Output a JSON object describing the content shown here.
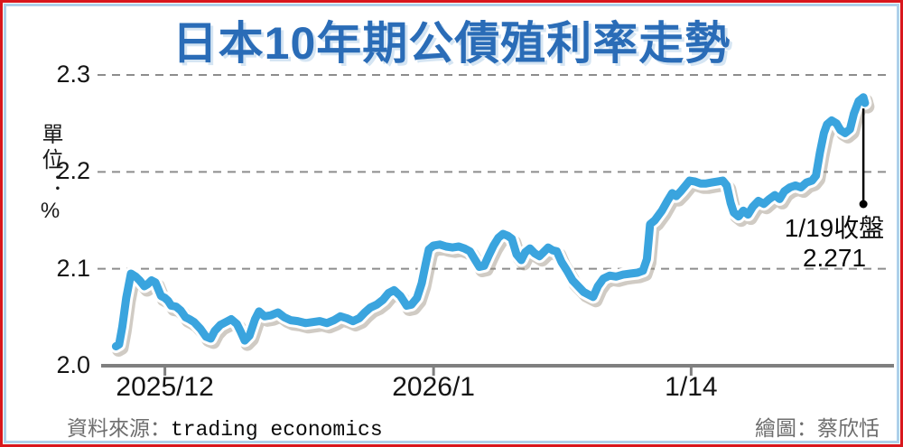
{
  "chart_data": {
    "type": "line",
    "title": "日本10年期公債殖利率走勢",
    "unit_label": "單位：%",
    "series_name": "日本10年期公債殖利率",
    "y_axis": {
      "ticks": [
        2.0,
        2.1,
        2.2,
        2.3
      ],
      "min": 2.0,
      "max": 2.3,
      "grid": "dashed"
    },
    "x_axis": {
      "ticks": [
        {
          "label": "2025/12",
          "pos_pct": 8.3
        },
        {
          "label": "2026/1",
          "pos_pct": 42.3
        },
        {
          "label": "1/14",
          "pos_pct": 74.9
        }
      ]
    },
    "annotation": {
      "label_line1": "1/19收盤",
      "label_line2": "2.271",
      "value": 2.271,
      "pos_pct": 96.7
    },
    "colors": {
      "line": "#3aa4de",
      "line_casing": "#ffffff",
      "line_shadow": "rgba(150,140,125,0.45)",
      "grid": "#8d8d8d",
      "axis": "#7f7f7f",
      "title": "#2a6cb7",
      "border_outer": "#d8171d",
      "border_inner": "#aed0ea"
    },
    "points": [
      [
        2.1,
        2.02
      ],
      [
        2.5,
        2.022
      ],
      [
        2.9,
        2.04
      ],
      [
        3.4,
        2.07
      ],
      [
        4.0,
        2.095
      ],
      [
        4.6,
        2.092
      ],
      [
        5.1,
        2.088
      ],
      [
        5.7,
        2.082
      ],
      [
        6.1,
        2.084
      ],
      [
        6.6,
        2.088
      ],
      [
        7.1,
        2.086
      ],
      [
        7.8,
        2.072
      ],
      [
        8.3,
        2.07
      ],
      [
        8.7,
        2.067
      ],
      [
        9.1,
        2.062
      ],
      [
        9.7,
        2.061
      ],
      [
        10.3,
        2.057
      ],
      [
        10.9,
        2.05
      ],
      [
        11.4,
        2.048
      ],
      [
        12.0,
        2.045
      ],
      [
        12.8,
        2.038
      ],
      [
        13.5,
        2.03
      ],
      [
        14.1,
        2.028
      ],
      [
        14.6,
        2.036
      ],
      [
        15.3,
        2.042
      ],
      [
        16.0,
        2.045
      ],
      [
        16.7,
        2.048
      ],
      [
        17.4,
        2.043
      ],
      [
        17.9,
        2.035
      ],
      [
        18.4,
        2.026
      ],
      [
        19.0,
        2.031
      ],
      [
        19.7,
        2.048
      ],
      [
        20.2,
        2.056
      ],
      [
        20.9,
        2.051
      ],
      [
        21.7,
        2.052
      ],
      [
        22.6,
        2.055
      ],
      [
        23.4,
        2.05
      ],
      [
        24.2,
        2.047
      ],
      [
        25.1,
        2.046
      ],
      [
        26.1,
        2.044
      ],
      [
        27.0,
        2.045
      ],
      [
        27.9,
        2.046
      ],
      [
        28.8,
        2.044
      ],
      [
        29.7,
        2.047
      ],
      [
        30.5,
        2.051
      ],
      [
        31.3,
        2.049
      ],
      [
        32.1,
        2.046
      ],
      [
        32.9,
        2.049
      ],
      [
        33.6,
        2.055
      ],
      [
        34.3,
        2.06
      ],
      [
        35.1,
        2.063
      ],
      [
        35.9,
        2.068
      ],
      [
        36.6,
        2.075
      ],
      [
        37.3,
        2.078
      ],
      [
        38.1,
        2.072
      ],
      [
        38.9,
        2.062
      ],
      [
        39.5,
        2.063
      ],
      [
        40.2,
        2.07
      ],
      [
        40.8,
        2.085
      ],
      [
        41.3,
        2.105
      ],
      [
        41.7,
        2.12
      ],
      [
        42.3,
        2.124
      ],
      [
        43.1,
        2.125
      ],
      [
        43.9,
        2.123
      ],
      [
        44.7,
        2.122
      ],
      [
        45.5,
        2.123
      ],
      [
        46.2,
        2.121
      ],
      [
        46.9,
        2.118
      ],
      [
        47.5,
        2.11
      ],
      [
        48.1,
        2.102
      ],
      [
        48.7,
        2.103
      ],
      [
        49.3,
        2.114
      ],
      [
        49.9,
        2.124
      ],
      [
        50.5,
        2.132
      ],
      [
        51.1,
        2.136
      ],
      [
        51.7,
        2.134
      ],
      [
        52.2,
        2.131
      ],
      [
        52.8,
        2.115
      ],
      [
        53.4,
        2.109
      ],
      [
        53.9,
        2.117
      ],
      [
        54.5,
        2.121
      ],
      [
        55.1,
        2.116
      ],
      [
        55.7,
        2.113
      ],
      [
        56.2,
        2.117
      ],
      [
        56.8,
        2.122
      ],
      [
        57.4,
        2.119
      ],
      [
        57.9,
        2.118
      ],
      [
        58.5,
        2.107
      ],
      [
        59.2,
        2.098
      ],
      [
        59.9,
        2.088
      ],
      [
        60.6,
        2.082
      ],
      [
        61.3,
        2.076
      ],
      [
        62.0,
        2.073
      ],
      [
        62.5,
        2.071
      ],
      [
        63.1,
        2.082
      ],
      [
        63.8,
        2.09
      ],
      [
        64.6,
        2.093
      ],
      [
        65.4,
        2.092
      ],
      [
        66.3,
        2.094
      ],
      [
        67.2,
        2.095
      ],
      [
        68.1,
        2.096
      ],
      [
        68.8,
        2.098
      ],
      [
        69.3,
        2.11
      ],
      [
        69.7,
        2.146
      ],
      [
        70.3,
        2.15
      ],
      [
        71.2,
        2.16
      ],
      [
        71.9,
        2.17
      ],
      [
        72.5,
        2.178
      ],
      [
        73.0,
        2.175
      ],
      [
        73.6,
        2.18
      ],
      [
        74.2,
        2.186
      ],
      [
        74.7,
        2.191
      ],
      [
        75.4,
        2.19
      ],
      [
        76.1,
        2.188
      ],
      [
        76.8,
        2.188
      ],
      [
        77.5,
        2.189
      ],
      [
        78.2,
        2.19
      ],
      [
        78.9,
        2.191
      ],
      [
        79.4,
        2.186
      ],
      [
        79.9,
        2.168
      ],
      [
        80.3,
        2.158
      ],
      [
        80.9,
        2.154
      ],
      [
        81.5,
        2.16
      ],
      [
        82.1,
        2.156
      ],
      [
        82.7,
        2.164
      ],
      [
        83.4,
        2.17
      ],
      [
        84.1,
        2.167
      ],
      [
        84.8,
        2.172
      ],
      [
        85.5,
        2.176
      ],
      [
        86.1,
        2.172
      ],
      [
        86.7,
        2.18
      ],
      [
        87.4,
        2.184
      ],
      [
        88.1,
        2.186
      ],
      [
        88.8,
        2.184
      ],
      [
        89.5,
        2.189
      ],
      [
        90.2,
        2.191
      ],
      [
        90.7,
        2.196
      ],
      [
        91.2,
        2.22
      ],
      [
        91.7,
        2.24
      ],
      [
        92.1,
        2.249
      ],
      [
        92.7,
        2.253
      ],
      [
        93.3,
        2.25
      ],
      [
        93.8,
        2.243
      ],
      [
        94.4,
        2.24
      ],
      [
        95.0,
        2.244
      ],
      [
        95.5,
        2.26
      ],
      [
        96.1,
        2.273
      ],
      [
        96.7,
        2.277
      ],
      [
        96.9,
        2.271
      ]
    ]
  },
  "footer": {
    "source_prefix": "資料來源：",
    "source_name": "trading economics",
    "credit": "繪圖：蔡欣恬"
  }
}
